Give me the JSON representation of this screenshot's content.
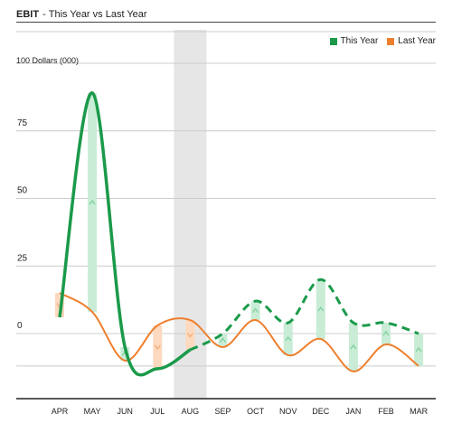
{
  "header": {
    "title": "EBIT",
    "separator": "-",
    "subtitle": "This Year vs Last Year"
  },
  "colors": {
    "this_year": "#1a9a4a",
    "this_year_light": "#c9ecd6",
    "last_year": "#ee7f2d",
    "last_year_light": "#fcd9bf",
    "highlight_band": "#e6e6e6",
    "grid": "#cccccc",
    "axis": "#222222"
  },
  "chart_data": {
    "type": "line",
    "title": "EBIT",
    "subtitle": "This Year vs Last Year",
    "ylabel": "100 Dollars (000)",
    "categories": [
      "APR",
      "MAY",
      "JUN",
      "JUL",
      "AUG",
      "SEP",
      "OCT",
      "NOV",
      "DEC",
      "JAN",
      "FEB",
      "MAR"
    ],
    "yticks": [
      0,
      25,
      50,
      75
    ],
    "ylim": [
      -25,
      110
    ],
    "grid": true,
    "legend_position": "top-right",
    "highlighted_category": "AUG",
    "actual_through": "AUG",
    "series": [
      {
        "name": "This Year",
        "key": "this_year",
        "values": [
          6,
          89,
          -5,
          -13,
          -6,
          0,
          12,
          4,
          20,
          4,
          4,
          0
        ]
      },
      {
        "name": "Last Year",
        "key": "last_year",
        "values": [
          15,
          8,
          -10,
          3,
          5,
          -5,
          5,
          -8,
          -2,
          -14,
          -4,
          -12
        ]
      }
    ]
  }
}
